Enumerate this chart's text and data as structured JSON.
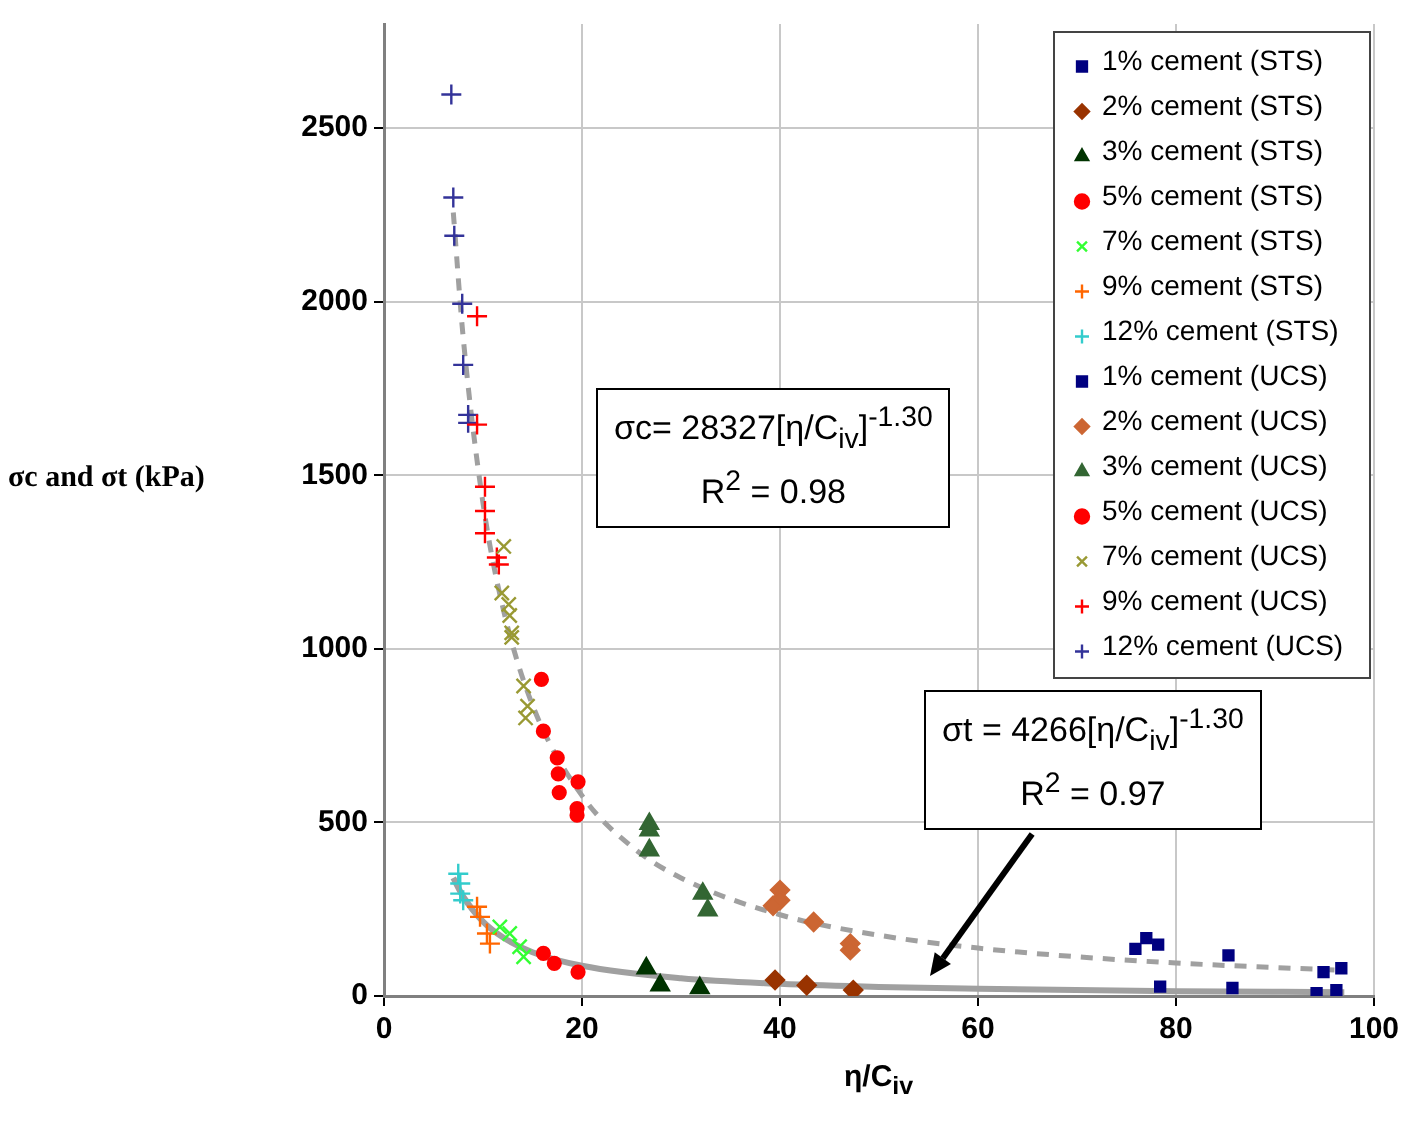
{
  "chart_data": {
    "type": "scatter",
    "xlabel": "η/C$_{iv}$",
    "ylabel": "σc and σt (kPa)",
    "xlim": [
      0,
      100
    ],
    "xticks": [
      0,
      20,
      40,
      60,
      80,
      100
    ],
    "ylim": [
      0,
      2800
    ],
    "yticks": [
      0,
      500,
      1000,
      1500,
      2000,
      2500
    ],
    "grid": true,
    "legend": "top right",
    "annotations": [
      "σc= 28327[η/C$_{iv}$]$^{-1.30}$",
      "R$^{2}$ = 0.98",
      "σt = 4266[η/C$_{iv}$]$^{-1.30}$",
      "R$^{2}$ = 0.97"
    ],
    "series": [
      {
        "name": "1% cement (STS)",
        "color": "#000080",
        "marker": "square",
        "x": [
          78.4,
          85.7,
          94.2,
          96.2
        ],
        "values": [
          27,
          23,
          8,
          17
        ]
      },
      {
        "name": "2% cement (STS)",
        "color": "#993300",
        "marker": "diamond",
        "x": [
          39.5,
          42.7,
          47.4
        ],
        "values": [
          46,
          31,
          17
        ]
      },
      {
        "name": "3% cement (STS)",
        "color": "#003300",
        "marker": "triangle",
        "x": [
          26.5,
          27.9,
          31.9
        ],
        "values": [
          80,
          31,
          23
        ]
      },
      {
        "name": "5% cement (STS)",
        "color": "#ff0000",
        "marker": "circle",
        "x": [
          16.1,
          17.2,
          19.6
        ],
        "values": [
          123,
          94,
          69
        ]
      },
      {
        "name": "7% cement (STS)",
        "color": "#33ff33",
        "marker": "x",
        "x": [
          11.7,
          12.7,
          13.7,
          14.1
        ],
        "values": [
          199,
          180,
          142,
          113
        ]
      },
      {
        "name": "9% cement (STS)",
        "color": "#ff6600",
        "marker": "cross",
        "x": [
          9.4,
          9.7,
          10.4,
          10.7
        ],
        "values": [
          257,
          228,
          180,
          151
        ]
      },
      {
        "name": "12% cement (STS)",
        "color": "#33cccc",
        "marker": "cross",
        "x": [
          7.5,
          7.7,
          7.7,
          8.0
        ],
        "values": [
          352,
          324,
          295,
          276
        ]
      },
      {
        "name": "1% cement (UCS)",
        "color": "#000080",
        "marker": "square",
        "x": [
          75.9,
          77.0,
          78.2,
          85.3,
          94.9,
          96.7
        ],
        "values": [
          136,
          167,
          148,
          117,
          69,
          80
        ]
      },
      {
        "name": "2% cement (UCS)",
        "color": "#cc6633",
        "marker": "diamond",
        "x": [
          40.0,
          40.0,
          39.3,
          43.4,
          47.1,
          47.1
        ],
        "values": [
          305,
          276,
          260,
          213,
          151,
          132
        ]
      },
      {
        "name": "3% cement (UCS)",
        "color": "#336633",
        "marker": "triangle",
        "x": [
          26.8,
          26.8,
          26.8,
          32.2,
          32.7
        ],
        "values": [
          496,
          477,
          420,
          295,
          247
        ]
      },
      {
        "name": "5% cement (UCS)",
        "color": "#ff0000",
        "marker": "circle",
        "x": [
          15.9,
          16.1,
          17.5,
          17.6,
          17.7,
          19.6,
          19.5,
          19.5
        ],
        "values": [
          912,
          763,
          686,
          640,
          586,
          617,
          540,
          521
        ]
      },
      {
        "name": "7% cement (UCS)",
        "color": "#999933",
        "marker": "x",
        "x": [
          12.1,
          11.9,
          12.6,
          12.7,
          12.9,
          12.9,
          14.1,
          14.5,
          14.3
        ],
        "values": [
          1295,
          1161,
          1128,
          1096,
          1046,
          1033,
          893,
          835,
          801
        ]
      },
      {
        "name": "9% cement (UCS)",
        "color": "#ff0000",
        "marker": "cross",
        "x": [
          9.4,
          9.4,
          10.2,
          10.2,
          10.2,
          11.4,
          11.6
        ],
        "values": [
          1958,
          1646,
          1467,
          1397,
          1333,
          1263,
          1243
        ]
      },
      {
        "name": "12% cement (UCS)",
        "color": "#333399",
        "marker": "cross",
        "x": [
          6.8,
          7.0,
          7.1,
          7.9,
          8.0,
          8.5,
          8.5
        ],
        "values": [
          2597,
          2300,
          2190,
          1994,
          1818,
          1674,
          1651
        ]
      },
      {
        "type": "line",
        "color": "#a0a0a0",
        "marker": "none",
        "line_style": "dashed",
        "x": [
          7,
          8,
          10,
          12,
          15,
          20,
          25,
          30,
          40,
          50,
          60,
          70,
          80,
          90,
          97
        ],
        "values": [
          2257,
          1897,
          1420,
          1120,
          838,
          577,
          431,
          340,
          234,
          175,
          138,
          113,
          95,
          82,
          74
        ]
      },
      {
        "type": "line",
        "color": "#a0a0a0",
        "marker": "none",
        "line_style": "solid",
        "x": [
          7,
          8,
          10,
          12,
          15,
          20,
          30,
          40,
          50,
          60,
          80,
          97
        ],
        "values": [
          340,
          286,
          214,
          169,
          126,
          87,
          51,
          35,
          26,
          21,
          14,
          11
        ]
      }
    ]
  }
}
